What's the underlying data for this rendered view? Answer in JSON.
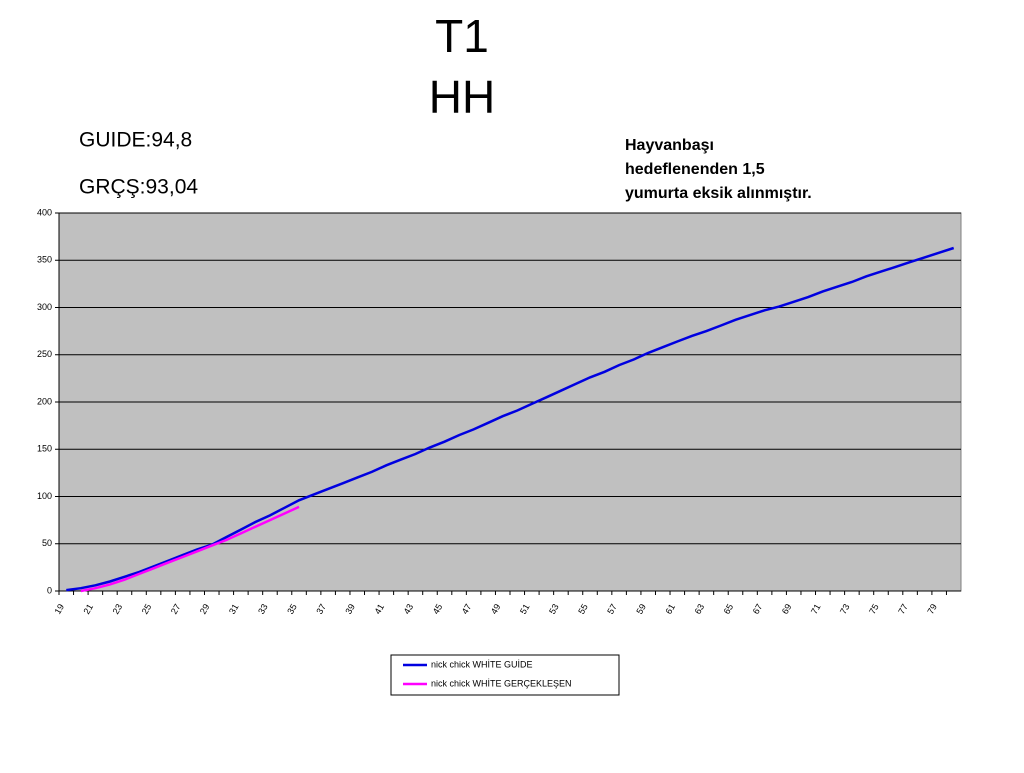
{
  "chart_data": {
    "type": "line",
    "title": [
      "T1",
      "HH"
    ],
    "annotations": [
      "GUIDE:94,8",
      "GRÇŞ:93,04"
    ],
    "note": [
      "Hayvanbaşı",
      "hedeflenenden 1,5",
      "yumurta eksik alınmıştır."
    ],
    "categories": [
      "19",
      null,
      "21",
      null,
      "23",
      null,
      "25",
      null,
      "27",
      null,
      "29",
      null,
      "31",
      null,
      "33",
      null,
      "35",
      null,
      "37",
      null,
      "39",
      null,
      "41",
      null,
      "43",
      null,
      "45",
      null,
      "47",
      null,
      "49",
      null,
      "51",
      null,
      "53",
      null,
      "55",
      null,
      "57",
      null,
      "59",
      null,
      "61",
      null,
      "63",
      null,
      "65",
      null,
      "67",
      null,
      "69",
      null,
      "71",
      null,
      "73",
      null,
      "75",
      null,
      "77",
      null,
      "79",
      null
    ],
    "series": [
      {
        "name": "nick chick WHİTE GUİDE",
        "color": "#0000e0",
        "values": [
          1,
          3,
          6,
          10,
          15,
          20,
          26,
          32,
          38,
          44,
          49,
          57,
          65,
          73,
          80,
          88,
          96,
          102,
          108,
          114,
          120,
          126,
          133,
          139,
          145,
          152,
          158,
          165,
          171,
          178,
          185,
          191,
          198,
          205,
          212,
          219,
          226,
          232,
          239,
          245,
          252,
          258,
          264,
          270,
          275,
          281,
          287,
          292,
          297,
          301,
          306,
          311,
          317,
          322,
          327,
          333,
          338,
          343,
          348,
          353,
          358,
          363
        ]
      },
      {
        "name": "nick chick WHİTE GERÇEKLEŞEN",
        "color": "#ff00ff",
        "values": [
          null,
          0,
          3,
          7,
          12,
          18,
          24,
          30,
          36,
          42,
          48,
          54,
          61,
          68,
          75,
          82,
          89,
          null,
          null,
          null,
          null,
          null,
          null,
          null,
          null,
          null,
          null,
          null,
          null,
          null,
          null,
          null,
          null,
          null,
          null,
          null,
          null,
          null,
          null,
          null,
          null,
          null,
          null,
          null,
          null,
          null,
          null,
          null,
          null,
          null,
          null,
          null,
          null,
          null,
          null,
          null,
          null,
          null,
          null,
          null,
          null,
          null
        ]
      }
    ],
    "ylim": [
      0,
      400
    ],
    "yticks": [
      0,
      50,
      100,
      150,
      200,
      250,
      300,
      350,
      400
    ],
    "grid": true,
    "plot_background": "#c0c0c0",
    "legend": "bottom"
  }
}
